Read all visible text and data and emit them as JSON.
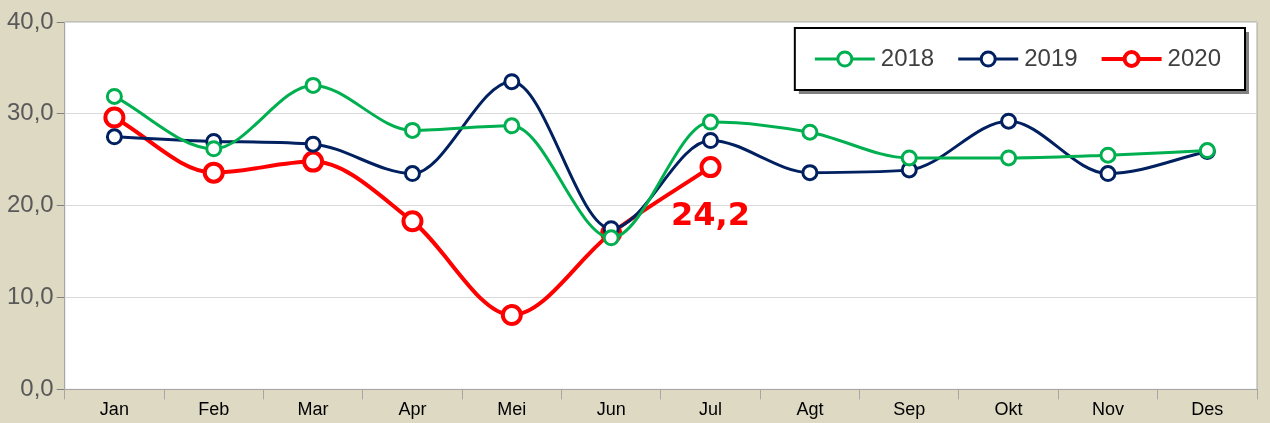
{
  "chart_data": {
    "type": "line",
    "categories": [
      "Jan",
      "Feb",
      "Mar",
      "Apr",
      "Mei",
      "Jun",
      "Jul",
      "Agt",
      "Sep",
      "Okt",
      "Nov",
      "Des"
    ],
    "series": [
      {
        "name": "2018",
        "color": "#00b050",
        "values": [
          31.9,
          26.2,
          33.1,
          28.2,
          28.7,
          16.5,
          29.1,
          28.0,
          25.2,
          25.2,
          25.5,
          26.0
        ]
      },
      {
        "name": "2019",
        "color": "#002060",
        "values": [
          27.5,
          27.0,
          26.7,
          23.5,
          33.5,
          17.5,
          27.1,
          23.6,
          23.9,
          29.2,
          23.5,
          25.9
        ]
      },
      {
        "name": "2020",
        "color": "#ff0000",
        "values": [
          29.6,
          23.6,
          24.8,
          18.3,
          8.1,
          17.0,
          24.2,
          null,
          null,
          null,
          null,
          null
        ],
        "value_labels": [
          null,
          null,
          null,
          null,
          null,
          null,
          "24,2",
          null,
          null,
          null,
          null,
          null
        ]
      }
    ],
    "ylim": [
      0,
      40
    ],
    "yticks": [
      {
        "value": 0,
        "label": "0,0"
      },
      {
        "value": 10,
        "label": "10,0"
      },
      {
        "value": 20,
        "label": "20,0"
      },
      {
        "value": 30,
        "label": "30,0"
      },
      {
        "value": 40,
        "label": "40,0"
      }
    ],
    "grid": "y",
    "legend": "top right",
    "marker": "circle",
    "line_style": "solid"
  }
}
